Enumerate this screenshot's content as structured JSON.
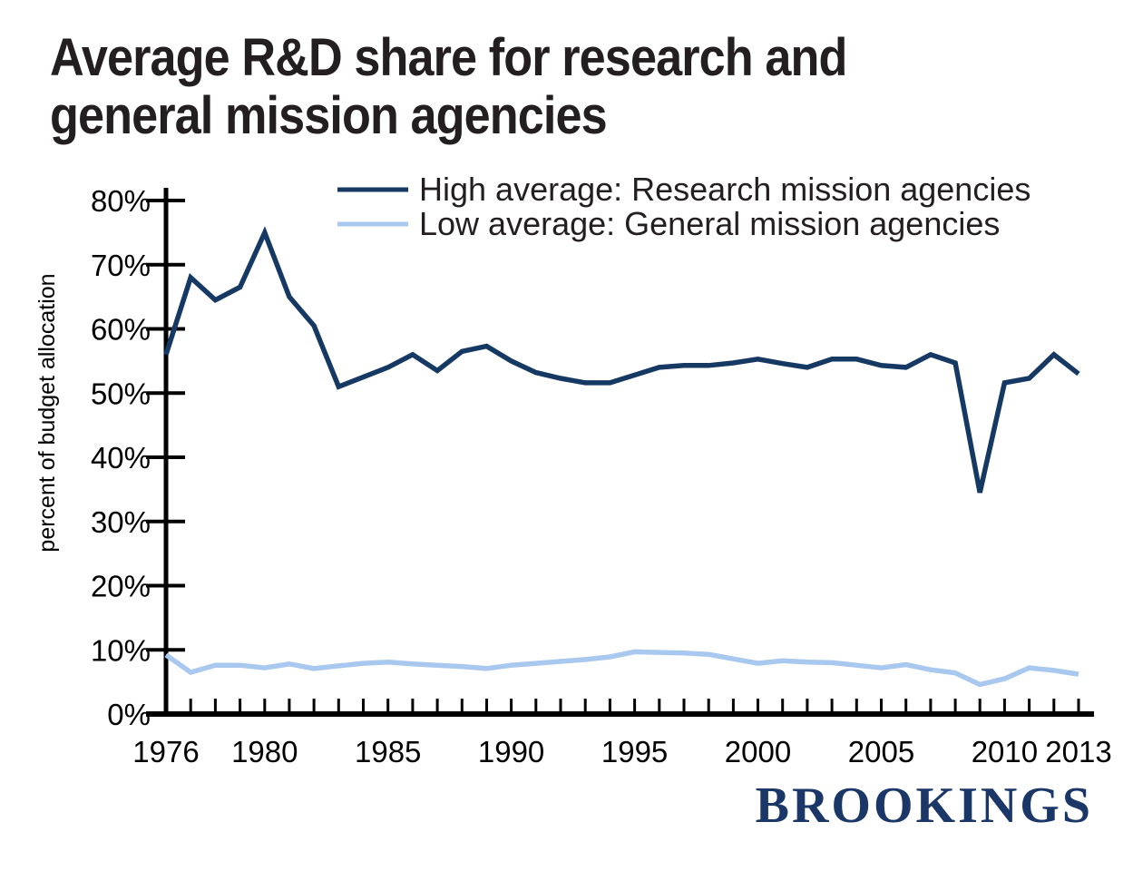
{
  "header": {
    "title_lines": [
      "Average R&D share for research and",
      "general mission agencies"
    ],
    "title_color": "#231F20"
  },
  "chart_data": {
    "type": "line",
    "title": "Average R&D share for research and general mission agencies",
    "xlabel": "",
    "ylabel": "percent of budget allocation",
    "ylim": [
      0,
      80
    ],
    "x_range": [
      1976,
      2013
    ],
    "grid": false,
    "legend_position": "top",
    "axis_color": "#000000",
    "y_ticks": [
      {
        "value": 0,
        "label": "0%"
      },
      {
        "value": 10,
        "label": "10%"
      },
      {
        "value": 20,
        "label": "20%"
      },
      {
        "value": 30,
        "label": "30%"
      },
      {
        "value": 40,
        "label": "40%"
      },
      {
        "value": 50,
        "label": "50%"
      },
      {
        "value": 60,
        "label": "60%"
      },
      {
        "value": 70,
        "label": "70%"
      },
      {
        "value": 80,
        "label": "80%"
      }
    ],
    "x_ticks": [
      {
        "value": 1976,
        "label": "1976"
      },
      {
        "value": 1980,
        "label": "1980"
      },
      {
        "value": 1985,
        "label": "1985"
      },
      {
        "value": 1990,
        "label": "1990"
      },
      {
        "value": 1995,
        "label": "1995"
      },
      {
        "value": 2000,
        "label": "2000"
      },
      {
        "value": 2005,
        "label": "2005"
      },
      {
        "value": 2010,
        "label": "2010"
      },
      {
        "value": 2013,
        "label": "2013"
      }
    ],
    "x_minor_tick_every_year": true,
    "x": [
      1976,
      1977,
      1978,
      1979,
      1980,
      1981,
      1982,
      1983,
      1984,
      1985,
      1986,
      1987,
      1988,
      1989,
      1990,
      1991,
      1992,
      1993,
      1994,
      1995,
      1996,
      1997,
      1998,
      1999,
      2000,
      2001,
      2002,
      2003,
      2004,
      2005,
      2006,
      2007,
      2008,
      2009,
      2010,
      2011,
      2012,
      2013
    ],
    "series": [
      {
        "name": "High average: Research mission agencies",
        "color": "#163964",
        "values": [
          56,
          68,
          64.5,
          66.5,
          75,
          65,
          60.5,
          51,
          52.5,
          54,
          56,
          53.5,
          56.5,
          57.3,
          55,
          53.2,
          52.3,
          51.6,
          51.6,
          52.8,
          54,
          54.3,
          54.3,
          54.7,
          55.3,
          54.6,
          54,
          55.3,
          55.3,
          54.3,
          54,
          56,
          54.7,
          34.5,
          51.6,
          52.3,
          56,
          53
        ]
      },
      {
        "name": "Low average: General mission agencies",
        "color": "#A9C8EF",
        "values": [
          9.2,
          6.5,
          7.6,
          7.6,
          7.2,
          7.8,
          7.1,
          7.5,
          7.9,
          8.1,
          7.8,
          7.6,
          7.4,
          7.1,
          7.6,
          7.9,
          8.2,
          8.5,
          8.9,
          9.7,
          9.6,
          9.5,
          9.3,
          8.6,
          7.9,
          8.3,
          8.1,
          8.0,
          7.6,
          7.2,
          7.7,
          6.9,
          6.4,
          4.6,
          5.5,
          7.2,
          6.8,
          6.2
        ]
      }
    ]
  },
  "footer": {
    "logo_text": "BROOKINGS",
    "logo_color": "#1A3768"
  }
}
